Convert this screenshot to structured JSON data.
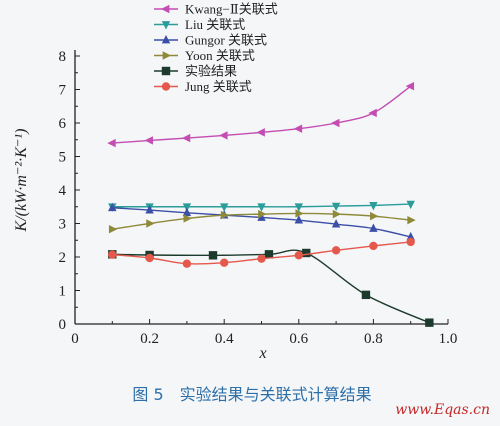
{
  "chart_data": {
    "type": "line",
    "title": "",
    "xlabel": "x",
    "ylabel": "K/(kW·m⁻²·K⁻¹)",
    "xlim": [
      0,
      1.0
    ],
    "ylim": [
      0,
      8
    ],
    "xticks": [
      0,
      0.2,
      0.4,
      0.6,
      0.8,
      1.0
    ],
    "xtick_labels": [
      "0",
      "0.2",
      "0.4",
      "0.6",
      "0.8",
      "1.0"
    ],
    "yticks": [
      0,
      1,
      2,
      3,
      4,
      5,
      6,
      7,
      8
    ],
    "ytick_labels": [
      "0",
      "1",
      "2",
      "3",
      "4",
      "5",
      "6",
      "7",
      "8"
    ],
    "grid": false,
    "legend_position": "top-right",
    "series": [
      {
        "name": "Kwang−Ⅱ关联式",
        "color": "#c44cb3",
        "marker": "triangle-left",
        "x": [
          0.1,
          0.2,
          0.3,
          0.4,
          0.5,
          0.6,
          0.7,
          0.8,
          0.9
        ],
        "y": [
          5.4,
          5.48,
          5.55,
          5.63,
          5.72,
          5.83,
          6.0,
          6.3,
          7.1
        ]
      },
      {
        "name": "Liu 关联式",
        "color": "#2a9d9b",
        "marker": "triangle-down",
        "x": [
          0.1,
          0.2,
          0.3,
          0.4,
          0.5,
          0.6,
          0.7,
          0.8,
          0.9
        ],
        "y": [
          3.5,
          3.5,
          3.5,
          3.5,
          3.5,
          3.5,
          3.52,
          3.54,
          3.58
        ]
      },
      {
        "name": "Gungor 关联式",
        "color": "#3b4fa6",
        "marker": "triangle-up",
        "x": [
          0.1,
          0.2,
          0.3,
          0.4,
          0.5,
          0.6,
          0.7,
          0.8,
          0.9
        ],
        "y": [
          3.47,
          3.4,
          3.32,
          3.25,
          3.18,
          3.1,
          2.98,
          2.85,
          2.6
        ]
      },
      {
        "name": "Yoon 关联式",
        "color": "#8f8a3a",
        "marker": "triangle-right",
        "x": [
          0.1,
          0.2,
          0.3,
          0.4,
          0.5,
          0.6,
          0.7,
          0.8,
          0.9
        ],
        "y": [
          2.83,
          3.0,
          3.15,
          3.25,
          3.28,
          3.3,
          3.28,
          3.22,
          3.1
        ]
      },
      {
        "name": "实验结果",
        "color": "#1d3b2c",
        "marker": "square",
        "x": [
          0.1,
          0.2,
          0.37,
          0.52,
          0.62,
          0.78,
          0.95
        ],
        "y": [
          2.08,
          2.06,
          2.05,
          2.08,
          2.12,
          0.87,
          0.04
        ]
      },
      {
        "name": "Jung 关联式",
        "color": "#e5584c",
        "marker": "circle",
        "x": [
          0.1,
          0.2,
          0.3,
          0.4,
          0.5,
          0.6,
          0.7,
          0.8,
          0.9
        ],
        "y": [
          2.07,
          1.97,
          1.8,
          1.83,
          1.95,
          2.05,
          2.2,
          2.33,
          2.45
        ]
      }
    ]
  },
  "caption": "图 5　实验结果与关联式计算结果",
  "watermark": "www.Eqas.cn"
}
